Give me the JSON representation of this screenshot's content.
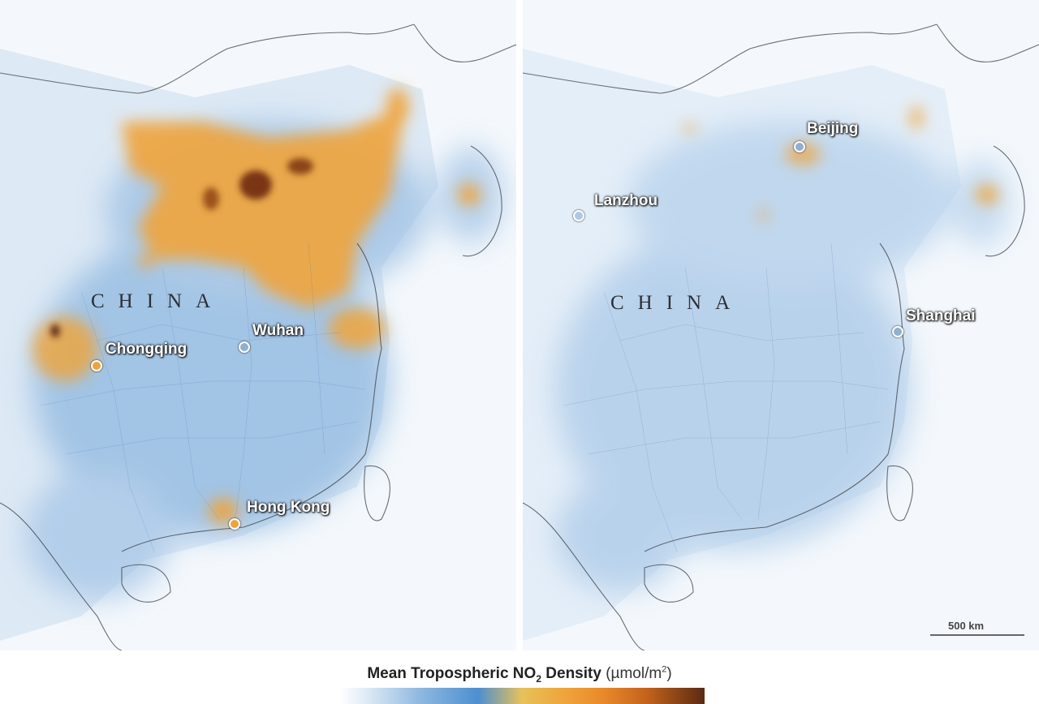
{
  "country_label": "CHINA",
  "panels": [
    {
      "country": "CHINA",
      "cities": [
        {
          "name": "Chongqing"
        },
        {
          "name": "Wuhan"
        },
        {
          "name": "Hong Kong"
        }
      ]
    },
    {
      "country": "CHINA",
      "cities": [
        {
          "name": "Beijing"
        },
        {
          "name": "Lanzhou"
        },
        {
          "name": "Shanghai"
        }
      ]
    }
  ],
  "scale_bar": {
    "label": "500 km"
  },
  "legend": {
    "title_prefix": "Mean Tropospheric NO",
    "title_subscript": "2",
    "title_suffix": " Density",
    "unit_prefix": "(µmol/m",
    "unit_superscript": "2",
    "unit_suffix": ")",
    "colors": [
      "#ffffff",
      "#8fb8e0",
      "#4d8fd0",
      "#e7c15a",
      "#f0a33a",
      "#c4631d",
      "#5a2a12"
    ]
  },
  "colors": {
    "ocean": "#f3f7fb",
    "land": "#e9f1f9",
    "low_density": "#5c97d2",
    "high_density": "#f0a33a",
    "extreme_density": "#6e2a10"
  }
}
